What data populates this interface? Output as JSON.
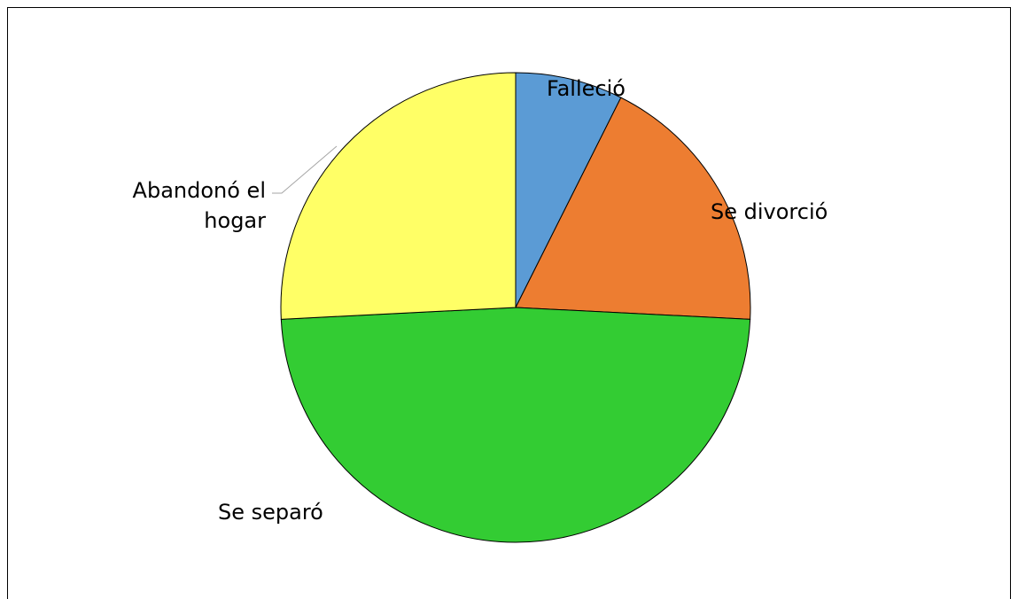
{
  "chart_data": {
    "type": "pie",
    "categories": [
      "Falleció",
      "Se divorció",
      "Se separó",
      "Abandonó el hogar"
    ],
    "values": [
      7.4,
      18.4,
      48.4,
      25.8
    ],
    "colors": [
      "#5b9bd5",
      "#ed7d31",
      "#33cc33",
      "#ffff66"
    ]
  }
}
